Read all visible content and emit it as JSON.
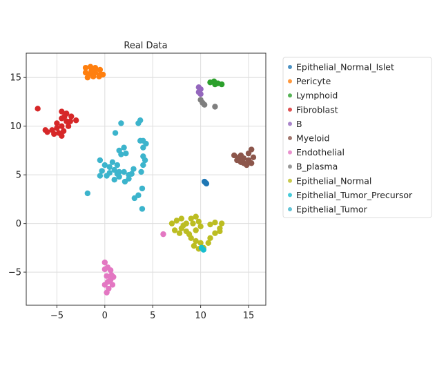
{
  "chart_data": {
    "type": "scatter",
    "title": "Real Data",
    "xlabel": "",
    "ylabel": "",
    "xlim": [
      -8.2,
      16.8
    ],
    "ylim": [
      -8.4,
      17.5
    ],
    "xticks": [
      -5,
      0,
      5,
      10,
      15
    ],
    "yticks": [
      -5,
      0,
      5,
      10,
      15
    ],
    "grid": true,
    "legend_position": "outside-right",
    "series": [
      {
        "name": "Epithelial_Normal_Islet",
        "color": "#1f77b4",
        "points": [
          [
            10.4,
            4.3
          ],
          [
            10.6,
            4.1
          ],
          [
            10.5,
            4.2
          ]
        ]
      },
      {
        "name": "Pericyte",
        "color": "#ff7f0e",
        "points": [
          [
            -2,
            16
          ],
          [
            -1.5,
            16.1
          ],
          [
            -1,
            16
          ],
          [
            -0.5,
            15.8
          ],
          [
            -2,
            15.5
          ],
          [
            -1.5,
            15.4
          ],
          [
            -1,
            15.5
          ],
          [
            -0.5,
            15.3
          ],
          [
            -1.8,
            15
          ],
          [
            -1.2,
            15.1
          ],
          [
            -0.6,
            15.1
          ],
          [
            -0.2,
            15.3
          ],
          [
            -1,
            15.8
          ],
          [
            -1.4,
            15.7
          ]
        ]
      },
      {
        "name": "Lymphoid",
        "color": "#2ca02c",
        "points": [
          [
            11,
            14.5
          ],
          [
            11.4,
            14.6
          ],
          [
            11.8,
            14.4
          ],
          [
            12.2,
            14.3
          ],
          [
            11.5,
            14.3
          ]
        ]
      },
      {
        "name": "Fibroblast",
        "color": "#d62728",
        "points": [
          [
            -7,
            11.8
          ],
          [
            -4.5,
            11.5
          ],
          [
            -4,
            11.3
          ],
          [
            -3.5,
            11
          ],
          [
            -3,
            10.6
          ],
          [
            -4.5,
            10.8
          ],
          [
            -4,
            10.5
          ],
          [
            -3.8,
            10
          ],
          [
            -4.5,
            10
          ],
          [
            -5,
            9.8
          ],
          [
            -5.5,
            9.6
          ],
          [
            -6,
            9.4
          ],
          [
            -5.3,
            9.2
          ],
          [
            -4.8,
            9.3
          ],
          [
            -4.3,
            9.5
          ],
          [
            -4.5,
            9
          ],
          [
            -5,
            10.3
          ],
          [
            -6.2,
            9.6
          ],
          [
            -4.2,
            11
          ],
          [
            -3.6,
            10.5
          ]
        ]
      },
      {
        "name": "B",
        "color": "#9467bd",
        "points": [
          [
            9.8,
            14
          ],
          [
            10,
            13.8
          ],
          [
            9.8,
            13.5
          ],
          [
            10,
            13.3
          ]
        ]
      },
      {
        "name": "Myeloid",
        "color": "#8c564b",
        "points": [
          [
            13.5,
            7
          ],
          [
            14,
            6.8
          ],
          [
            14.5,
            6.7
          ],
          [
            15,
            7.2
          ],
          [
            15.3,
            7.6
          ],
          [
            15.5,
            6.8
          ],
          [
            15.3,
            6.2
          ],
          [
            14.8,
            6
          ],
          [
            14.2,
            6.3
          ],
          [
            13.8,
            6.5
          ],
          [
            15,
            6.5
          ],
          [
            14.5,
            6.2
          ],
          [
            14.2,
            7
          ]
        ]
      },
      {
        "name": "Endothelial",
        "color": "#e377c2",
        "points": [
          [
            6.1,
            -1.1
          ],
          [
            0,
            -4
          ],
          [
            0.3,
            -4.5
          ],
          [
            0,
            -4.7
          ],
          [
            0.6,
            -4.8
          ],
          [
            0.7,
            -5.3
          ],
          [
            0.6,
            -5.8
          ],
          [
            0.3,
            -6
          ],
          [
            0,
            -6.3
          ],
          [
            0.4,
            -6.7
          ],
          [
            0.2,
            -7.1
          ],
          [
            0.8,
            -6.3
          ],
          [
            0.9,
            -5.5
          ],
          [
            0.2,
            -5.4
          ]
        ]
      },
      {
        "name": "B_plasma",
        "color": "#7f7f7f",
        "points": [
          [
            10,
            12.7
          ],
          [
            10.2,
            12.4
          ],
          [
            10.4,
            12.2
          ],
          [
            11.5,
            12
          ]
        ]
      },
      {
        "name": "Epithelial_Normal",
        "color": "#bcbd22",
        "points": [
          [
            7,
            0
          ],
          [
            7.5,
            0.3
          ],
          [
            8,
            0.5
          ],
          [
            8.5,
            0
          ],
          [
            9,
            0.5
          ],
          [
            9.5,
            0.7
          ],
          [
            9.8,
            0.2
          ],
          [
            10,
            -0.3
          ],
          [
            9.5,
            -0.7
          ],
          [
            8.5,
            -0.8
          ],
          [
            8,
            -0.5
          ],
          [
            7.3,
            -0.7
          ],
          [
            7.8,
            -1
          ],
          [
            9,
            -1.5
          ],
          [
            9.5,
            -1.8
          ],
          [
            9.3,
            -2.3
          ],
          [
            9.8,
            -2.6
          ],
          [
            10.3,
            -2.5
          ],
          [
            10.8,
            -2
          ],
          [
            11,
            -1.5
          ],
          [
            11.5,
            -1
          ],
          [
            12,
            -0.5
          ],
          [
            12.2,
            0
          ],
          [
            11.5,
            0.1
          ],
          [
            11,
            -0.1
          ],
          [
            12,
            -0.8
          ],
          [
            9.2,
            0
          ],
          [
            8.2,
            -0.2
          ],
          [
            8.8,
            -1.1
          ],
          [
            10,
            -2
          ]
        ]
      },
      {
        "name": "Epithelial_Tumor_Precursor",
        "color": "#17becf",
        "points": [
          [
            10.3,
            -2.7
          ],
          [
            10.1,
            -2.5
          ]
        ]
      },
      {
        "name": "Epithelial_Tumor",
        "color": "#3cb4cc",
        "points": [
          [
            1.5,
            7.5
          ],
          [
            2,
            7.8
          ],
          [
            2.2,
            7.2
          ],
          [
            1.7,
            7.1
          ],
          [
            4,
            8.5
          ],
          [
            4.3,
            8.2
          ],
          [
            4,
            7.8
          ],
          [
            3.7,
            8.5
          ],
          [
            3.5,
            10.3
          ],
          [
            3.7,
            10.6
          ],
          [
            1.7,
            10.3
          ],
          [
            1.1,
            9.3
          ],
          [
            -0.5,
            6.5
          ],
          [
            0,
            6
          ],
          [
            0.5,
            5.8
          ],
          [
            0.8,
            6.3
          ],
          [
            1,
            5.5
          ],
          [
            1.3,
            6
          ],
          [
            1.5,
            5.3
          ],
          [
            0.5,
            5.2
          ],
          [
            -0.3,
            5.4
          ],
          [
            -0.5,
            4.9
          ],
          [
            0.2,
            4.9
          ],
          [
            1,
            4.5
          ],
          [
            1.5,
            4.8
          ],
          [
            2,
            5.3
          ],
          [
            2.5,
            5
          ],
          [
            2.8,
            5.1
          ],
          [
            2.5,
            4.6
          ],
          [
            3,
            5.6
          ],
          [
            4,
            6
          ],
          [
            4.2,
            6.5
          ],
          [
            3.8,
            5.3
          ],
          [
            4,
            6.9
          ],
          [
            -1.8,
            3.1
          ],
          [
            3.9,
            3.6
          ],
          [
            3.5,
            2.9
          ],
          [
            3.1,
            2.6
          ],
          [
            3.9,
            1.5
          ],
          [
            2.1,
            4.3
          ],
          [
            1.3,
            5.1
          ]
        ]
      }
    ]
  }
}
